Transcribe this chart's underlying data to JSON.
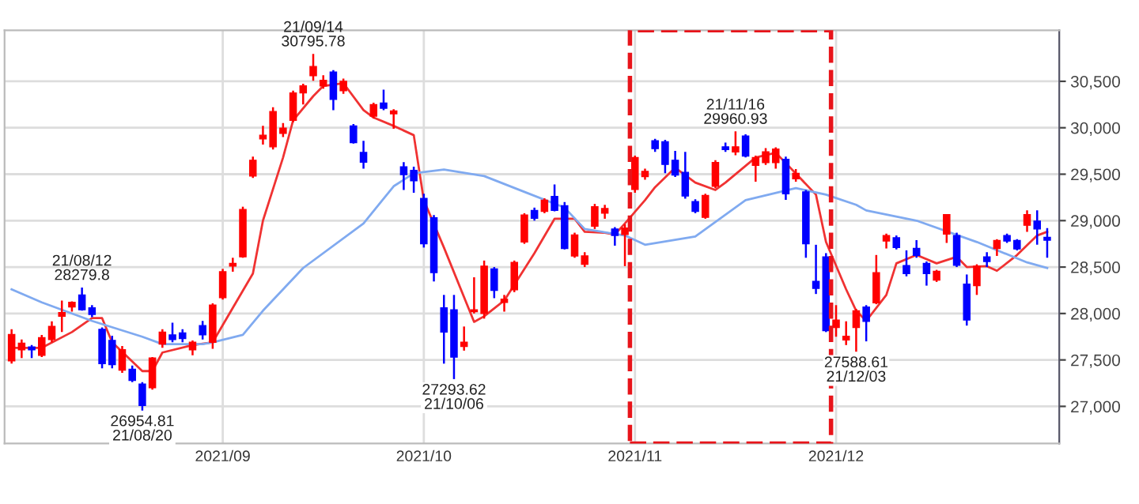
{
  "chart_data": {
    "type": "candlestick",
    "categories": [
      null,
      null,
      null,
      null,
      null,
      null,
      null,
      null,
      null,
      null,
      null,
      null,
      null,
      null,
      null,
      null,
      null,
      null,
      null,
      null,
      null,
      "2021/09",
      null,
      null,
      null,
      null,
      null,
      null,
      null,
      null,
      null,
      null,
      null,
      null,
      null,
      null,
      null,
      null,
      null,
      null,
      null,
      "2021/10",
      null,
      null,
      null,
      null,
      null,
      null,
      null,
      null,
      null,
      null,
      null,
      null,
      null,
      null,
      null,
      null,
      null,
      null,
      null,
      null,
      "2021/11",
      null,
      null,
      null,
      null,
      null,
      null,
      null,
      null,
      null,
      null,
      null,
      null,
      null,
      null,
      null,
      null,
      null,
      null,
      null,
      "2021/12",
      null,
      null,
      null,
      null,
      null,
      null,
      null,
      null,
      null,
      null,
      null,
      null,
      null,
      null,
      null,
      null,
      null,
      null,
      null,
      null,
      null
    ],
    "ohlc": [
      [
        27491,
        27831,
        27461,
        27774
      ],
      [
        27610,
        27720,
        27520,
        27680
      ],
      [
        27640,
        27660,
        27520,
        27610
      ],
      [
        27550,
        27770,
        27530,
        27740
      ],
      [
        27720,
        27915,
        27690,
        27860
      ],
      [
        27970,
        28140,
        27800,
        28010
      ],
      [
        28070,
        28130,
        28020,
        28120
      ],
      [
        28200,
        28279.8,
        28030,
        28040
      ],
      [
        28060,
        28090,
        27960,
        27990
      ],
      [
        27830,
        27850,
        27410,
        27460
      ],
      [
        27710,
        27760,
        27410,
        27450
      ],
      [
        27390,
        27650,
        27360,
        27610
      ],
      [
        27400,
        27440,
        27260,
        27280
      ],
      [
        27240,
        27260,
        26954.81,
        27010
      ],
      [
        27200,
        27530,
        27180,
        27520
      ],
      [
        27670,
        27830,
        27630,
        27800
      ],
      [
        27770,
        27900,
        27690,
        27720
      ],
      [
        27790,
        27830,
        27690,
        27730
      ],
      [
        27610,
        27710,
        27550,
        27690
      ],
      [
        27870,
        27920,
        27720,
        27770
      ],
      [
        27690,
        28110,
        27620,
        28090
      ],
      [
        28170,
        28480,
        28150,
        28450
      ],
      [
        28510,
        28600,
        28450,
        28540
      ],
      [
        28610,
        29150,
        28600,
        29120
      ],
      [
        29480,
        29690,
        29460,
        29650
      ],
      [
        29880,
        30020,
        29820,
        29920
      ],
      [
        29795,
        30220,
        29765,
        30175
      ],
      [
        29940,
        30050,
        29900,
        29995
      ],
      [
        30080,
        30400,
        30060,
        30375
      ],
      [
        30375,
        30475,
        30250,
        30450
      ],
      [
        30560,
        30795.78,
        30505,
        30660
      ],
      [
        30450,
        30565,
        30420,
        30510
      ],
      [
        30600,
        30620,
        30190,
        30305
      ],
      [
        30400,
        30530,
        30365,
        30500
      ],
      [
        30020,
        30040,
        29830,
        29840
      ],
      [
        29735,
        29860,
        29560,
        29630
      ],
      [
        30125,
        30270,
        30100,
        30250
      ],
      [
        30265,
        30410,
        30190,
        30210
      ],
      [
        30150,
        30200,
        29990,
        30180
      ],
      [
        29580,
        29630,
        29330,
        29495
      ],
      [
        29540,
        29580,
        29300,
        29430
      ],
      [
        29240,
        29290,
        28710,
        28750
      ],
      [
        29030,
        29060,
        28345,
        28440
      ],
      [
        28060,
        28200,
        27460,
        27800
      ],
      [
        28040,
        28200,
        27293.62,
        27530
      ],
      [
        27645,
        27860,
        27600,
        27690
      ],
      [
        28020,
        28390,
        28000,
        28040
      ],
      [
        28000,
        28570,
        27945,
        28510
      ],
      [
        28480,
        28500,
        28165,
        28250
      ],
      [
        28120,
        28200,
        28020,
        28155
      ],
      [
        28255,
        28570,
        28230,
        28550
      ],
      [
        28770,
        29080,
        28750,
        29060
      ],
      [
        29110,
        29140,
        29000,
        29025
      ],
      [
        29100,
        29240,
        29080,
        29220
      ],
      [
        29260,
        29390,
        29100,
        29110
      ],
      [
        29160,
        29200,
        28690,
        28700
      ],
      [
        28620,
        28870,
        28600,
        28845
      ],
      [
        28530,
        28660,
        28500,
        28620
      ],
      [
        28940,
        29180,
        28910,
        29150
      ],
      [
        29080,
        29170,
        29020,
        29130
      ],
      [
        28910,
        28930,
        28730,
        28840
      ],
      [
        28850,
        28960,
        28510,
        28920
      ],
      [
        29335,
        29700,
        29300,
        29680
      ],
      [
        29475,
        29560,
        29440,
        29530
      ],
      [
        29860,
        29880,
        29740,
        29775
      ],
      [
        29850,
        29870,
        29510,
        29605
      ],
      [
        29650,
        29750,
        29470,
        29490
      ],
      [
        29520,
        29740,
        29237,
        29265
      ],
      [
        29205,
        29230,
        29080,
        29100
      ],
      [
        29035,
        29290,
        29020,
        29270
      ],
      [
        29370,
        29650,
        29350,
        29625
      ],
      [
        29795,
        29840,
        29740,
        29765
      ],
      [
        29740,
        29960.93,
        29705,
        29795
      ],
      [
        29910,
        29930,
        29680,
        29695
      ],
      [
        29595,
        29700,
        29420,
        29680
      ],
      [
        29625,
        29780,
        29600,
        29740
      ],
      [
        29625,
        29790,
        29560,
        29770
      ],
      [
        29660,
        29690,
        29223,
        29290
      ],
      [
        29450,
        29555,
        29420,
        29510
      ],
      [
        29310,
        29330,
        28600,
        28750
      ],
      [
        28345,
        28740,
        28210,
        28270
      ],
      [
        28610,
        28650,
        27800,
        27815
      ],
      [
        27850,
        28090,
        27750,
        27930
      ],
      [
        27715,
        27916,
        27660,
        27755
      ],
      [
        27850,
        28050,
        27588.61,
        28030
      ],
      [
        28070,
        28090,
        27700,
        27915
      ],
      [
        28115,
        28630,
        28100,
        28440
      ],
      [
        28780,
        28860,
        28700,
        28840
      ],
      [
        28815,
        28840,
        28690,
        28710
      ],
      [
        28515,
        28680,
        28400,
        28430
      ],
      [
        28700,
        28790,
        28600,
        28625
      ],
      [
        28540,
        28560,
        28300,
        28430
      ],
      [
        28360,
        28470,
        28340,
        28455
      ],
      [
        28855,
        29070,
        28760,
        29065
      ],
      [
        28840,
        28870,
        28500,
        28520
      ],
      [
        28315,
        28420,
        27870,
        27930
      ],
      [
        28300,
        28530,
        28200,
        28510
      ],
      [
        28610,
        28660,
        28500,
        28560
      ],
      [
        28700,
        28800,
        28620,
        28785
      ],
      [
        28840,
        28860,
        28760,
        28780
      ],
      [
        28785,
        28800,
        28680,
        28695
      ],
      [
        28950,
        29110,
        28880,
        29065
      ],
      [
        28995,
        29110,
        28740,
        28910
      ],
      [
        28820,
        28920,
        28600,
        28790
      ]
    ],
    "colors": [
      "#ff0000",
      "#ff0000",
      "#0000ff",
      "#ff0000",
      "#ff0000",
      "#ff0000",
      "#ff0000",
      "#0000ff",
      "#0000ff",
      "#0000ff",
      "#0000ff",
      "#ff0000",
      "#0000ff",
      "#0000ff",
      "#ff0000",
      "#ff0000",
      "#0000ff",
      "#0000ff",
      "#ff0000",
      "#0000ff",
      "#ff0000",
      "#ff0000",
      "#ff0000",
      "#ff0000",
      "#ff0000",
      "#ff0000",
      "#ff0000",
      "#ff0000",
      "#ff0000",
      "#ff0000",
      "#ff0000",
      "#ff0000",
      "#0000ff",
      "#ff0000",
      "#0000ff",
      "#0000ff",
      "#ff0000",
      "#0000ff",
      "#ff0000",
      "#0000ff",
      "#0000ff",
      "#0000ff",
      "#0000ff",
      "#0000ff",
      "#0000ff",
      "#ff0000",
      "#ff0000",
      "#ff0000",
      "#0000ff",
      "#ff0000",
      "#ff0000",
      "#ff0000",
      "#0000ff",
      "#ff0000",
      "#0000ff",
      "#0000ff",
      "#ff0000",
      "#ff0000",
      "#ff0000",
      "#ff0000",
      "#0000ff",
      "#ff0000",
      "#ff0000",
      "#ff0000",
      "#0000ff",
      "#0000ff",
      "#0000ff",
      "#0000ff",
      "#0000ff",
      "#ff0000",
      "#ff0000",
      "#0000ff",
      "#ff0000",
      "#0000ff",
      "#ff0000",
      "#ff0000",
      "#ff0000",
      "#0000ff",
      "#ff0000",
      "#0000ff",
      "#0000ff",
      "#0000ff",
      "#ff0000",
      "#ff0000",
      "#ff0000",
      "#0000ff",
      "#ff0000",
      "#ff0000",
      "#0000ff",
      "#0000ff",
      "#0000ff",
      "#0000ff",
      "#ff0000",
      "#ff0000",
      "#0000ff",
      "#0000ff",
      "#ff0000",
      "#0000ff",
      "#ff0000",
      "#0000ff",
      "#0000ff",
      "#ff0000",
      "#0000ff",
      "#0000ff"
    ],
    "series": [
      {
        "type": "line",
        "color": "#f03232",
        "values": [
          27630,
          null,
          null,
          27630,
          null,
          null,
          27800,
          null,
          27950,
          27950,
          27690,
          null,
          null,
          27380,
          27380,
          27580,
          null,
          null,
          27660,
          null,
          27690,
          null,
          28060,
          null,
          28430,
          29000,
          null,
          29680,
          30080,
          null,
          30340,
          30450,
          null,
          30480,
          null,
          30190,
          30110,
          null,
          30020,
          null,
          29920,
          29220,
          null,
          28710,
          null,
          null,
          27910,
          27970,
          null,
          28140,
          null,
          28480,
          28650,
          null,
          29020,
          null,
          29020,
          28880,
          null,
          28870,
          28850,
          28970,
          null,
          29220,
          29360,
          null,
          29570,
          null,
          29410,
          null,
          29330,
          29410,
          null,
          null,
          29680,
          null,
          29730,
          29620,
          null,
          null,
          29280,
          28770,
          null,
          28260,
          28030,
          27920,
          null,
          28200,
          28540,
          null,
          28630,
          null,
          28540,
          null,
          28610,
          28500,
          null,
          28510,
          28460,
          null,
          28630,
          null,
          28840,
          28880
        ]
      },
      {
        "type": "line",
        "color": "#80aaf0",
        "values": [
          28260,
          null,
          null,
          28120,
          null,
          null,
          null,
          null,
          27920,
          null,
          null,
          null,
          null,
          27750,
          null,
          27670,
          null,
          null,
          null,
          27670,
          27690,
          null,
          null,
          27770,
          null,
          28030,
          null,
          null,
          null,
          28490,
          null,
          null,
          null,
          null,
          null,
          28970,
          null,
          null,
          29370,
          null,
          29510,
          null,
          null,
          29550,
          null,
          null,
          null,
          29480,
          null,
          null,
          null,
          29310,
          null,
          null,
          null,
          29140,
          null,
          28910,
          null,
          null,
          null,
          28840,
          null,
          28740,
          null,
          null,
          null,
          null,
          28830,
          null,
          null,
          null,
          null,
          29220,
          null,
          null,
          null,
          null,
          29350,
          null,
          null,
          29280,
          null,
          null,
          29170,
          29110,
          null,
          null,
          null,
          null,
          29000,
          null,
          null,
          null,
          null,
          null,
          28770,
          null,
          null,
          null,
          null,
          28550,
          null,
          28490
        ]
      }
    ],
    "ylim": [
      26600,
      31050
    ],
    "yticks": [
      {
        "value": 27000,
        "label": "27,000"
      },
      {
        "value": 27500,
        "label": "27,500"
      },
      {
        "value": 28000,
        "label": "28,000"
      },
      {
        "value": 28500,
        "label": "28,500"
      },
      {
        "value": 29000,
        "label": "29,000"
      },
      {
        "value": 29500,
        "label": "29,500"
      },
      {
        "value": 30000,
        "label": "30,000"
      },
      {
        "value": 30500,
        "label": "30,500"
      }
    ],
    "grid": true,
    "annotations": [
      {
        "text": "21/08/12\n28279.8",
        "y": 28279.8
      },
      {
        "text": "26954.81\n21/08/20",
        "y": 26954.81
      },
      {
        "text": "21/09/14\n30795.78",
        "y": 30795.78
      },
      {
        "text": "27293.62\n21/10/06",
        "y": 27293.62
      },
      {
        "text": "21/11/16\n29960.93",
        "y": 29960.93
      },
      {
        "text": "27588.61\n21/12/03",
        "y": 27588.61
      }
    ]
  }
}
